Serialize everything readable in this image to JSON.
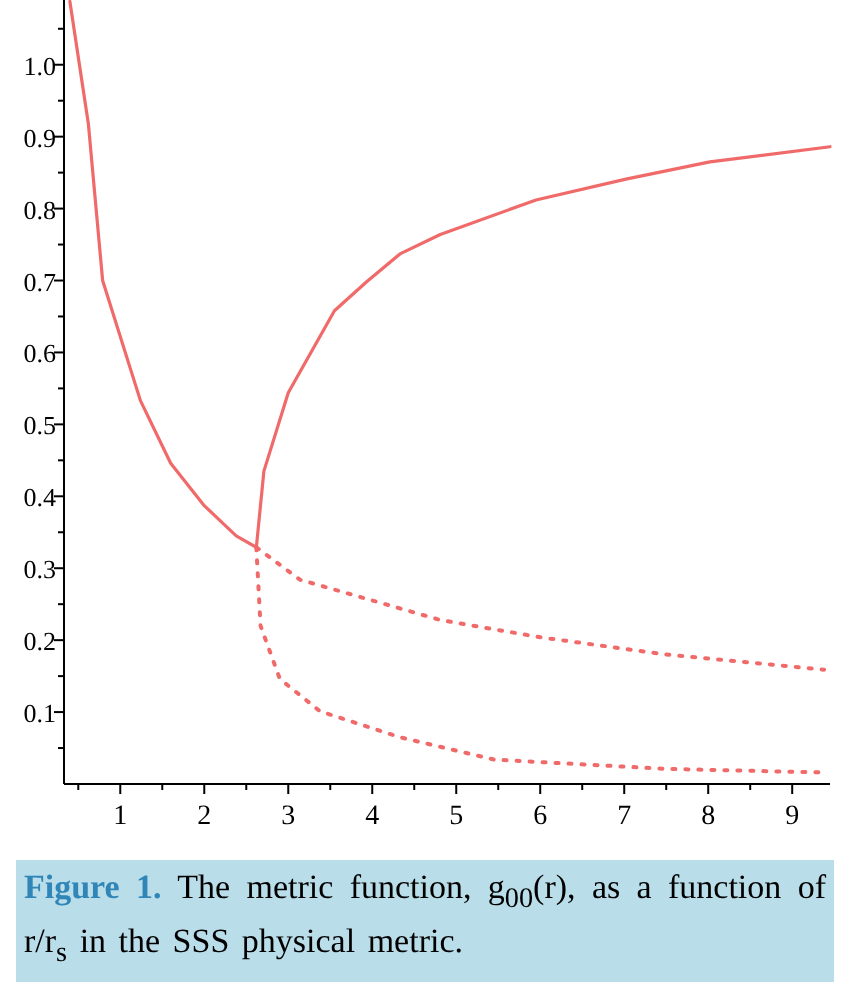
{
  "chart_data": {
    "type": "line",
    "xlim": [
      0.33,
      9.45
    ],
    "ylim": [
      0,
      1.09
    ],
    "xticks": [
      {
        "value": 0.5,
        "label": null
      },
      1,
      {
        "value": 1.5,
        "label": null
      },
      2,
      {
        "value": 2.5,
        "label": null
      },
      3,
      {
        "value": 3.5,
        "label": null
      },
      4,
      {
        "value": 4.5,
        "label": null
      },
      5,
      {
        "value": 5.5,
        "label": null
      },
      6,
      {
        "value": 6.5,
        "label": null
      },
      7,
      {
        "value": 7.5,
        "label": null
      },
      8,
      {
        "value": 8.5,
        "label": null
      },
      9
    ],
    "yticks": [
      {
        "value": 0.05,
        "label": null
      },
      0.1,
      {
        "value": 0.15,
        "label": null
      },
      0.2,
      {
        "value": 0.25,
        "label": null
      },
      0.3,
      {
        "value": 0.35,
        "label": null
      },
      0.4,
      {
        "value": 0.45,
        "label": null
      },
      0.5,
      {
        "value": 0.55,
        "label": null
      },
      0.6,
      {
        "value": 0.65,
        "label": null
      },
      0.7,
      {
        "value": 0.75,
        "label": null
      },
      0.8,
      {
        "value": 0.85,
        "label": null
      },
      0.9,
      {
        "value": 0.95,
        "label": null
      },
      {
        "value": 1,
        "label": "1.0"
      },
      {
        "value": 1.05,
        "label": null
      }
    ],
    "grid": false,
    "series": [
      {
        "color": "#f06a6a",
        "line_style": "solid",
        "x": [
          0.4,
          0.62,
          0.79,
          1.24,
          1.6,
          2.0,
          2.38,
          2.62
        ],
        "values": [
          1.088,
          0.918,
          0.7,
          0.533,
          0.446,
          0.387,
          0.345,
          0.329
        ]
      },
      {
        "color": "#f06a6a",
        "line_style": "solid",
        "x": [
          2.62,
          2.71,
          3.0,
          3.55,
          3.93,
          4.33,
          4.81,
          5.95,
          7.02,
          8.02,
          9.45
        ],
        "values": [
          0.329,
          0.435,
          0.544,
          0.658,
          0.698,
          0.737,
          0.764,
          0.812,
          0.841,
          0.865,
          0.886
        ]
      },
      {
        "color": "#f06a6a",
        "line_style": "dotted",
        "x": [
          2.62,
          3.14,
          4.81,
          6.0,
          7.5,
          9.38
        ],
        "values": [
          0.329,
          0.284,
          0.228,
          0.204,
          0.18,
          0.159
        ]
      },
      {
        "color": "#f06a6a",
        "line_style": "dotted",
        "x": [
          2.62,
          2.67,
          2.9,
          3.38,
          4.33,
          5.45,
          7.5,
          9.4
        ],
        "values": [
          0.329,
          0.22,
          0.146,
          0.101,
          0.065,
          0.034,
          0.021,
          0.016
        ]
      }
    ],
    "annotations": [
      "Figure 1. The metric function, g$_{00}$(r), as a function of r/r$_{s}$ in the SSS physical metric."
    ]
  }
}
